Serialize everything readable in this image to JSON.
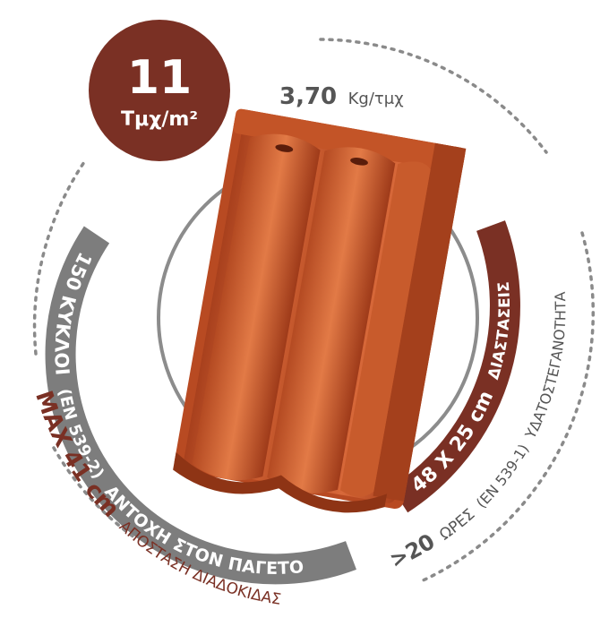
{
  "badge": {
    "count": "11",
    "unit": "Τμχ/m²",
    "color": "#7a3024"
  },
  "weight": {
    "value": "3,70",
    "unit": "Kg/τμχ",
    "color": "#555555"
  },
  "frost": {
    "value": "150 ΚΥΚΛΟΙ",
    "standard": "(EN 539-2)",
    "label": "ΑΝΤΟΧΗ ΣΤΟΝ ΠΑΓΕΤΟ",
    "color": "#7d7d7d"
  },
  "dimensions": {
    "value": "48 X 25 cm",
    "label": "ΔΙΑΣΤΑΣΕΙΣ",
    "color": "#7a3024"
  },
  "waterproof": {
    "value": ">20",
    "label": "ΩΡΕΣ",
    "standard": "(EN 539-1)",
    "tail": "ΥΔΑΤΟΣΤΕΓΑΝΟΤΗΤΑ",
    "color": "#555555"
  },
  "batten": {
    "value": "MAX 41 cm",
    "label": "ΑΠΟΣΤΑΣΗ ΔΙΑΔΟΚΙΔΑΣ",
    "color": "#7a3024"
  },
  "product": {
    "name": "roof-tile",
    "color": "#c9582a"
  }
}
